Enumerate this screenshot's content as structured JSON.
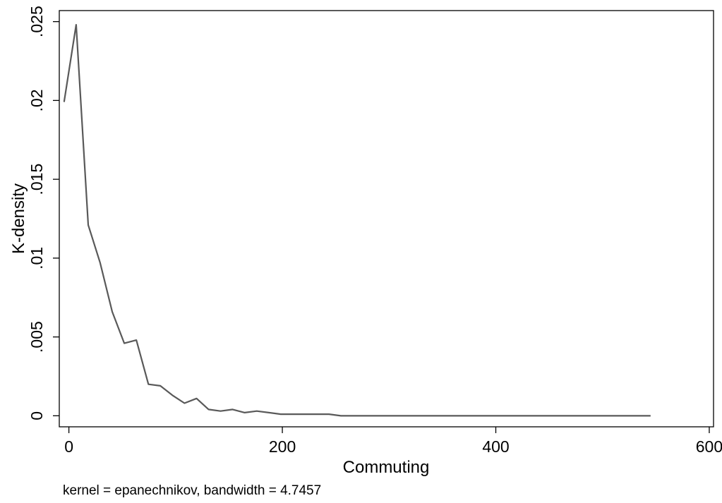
{
  "chart_data": {
    "type": "line",
    "xlabel": "Commuting",
    "ylabel": "K-density",
    "note": "kernel = epanechnikov, bandwidth = 4.7457",
    "xlim": [
      -9,
      604
    ],
    "ylim": [
      -0.0007,
      0.0257
    ],
    "xticks": [
      0,
      200,
      400,
      600
    ],
    "xtick_labels": [
      "0",
      "200",
      "400",
      "600"
    ],
    "yticks": [
      0,
      0.005,
      0.01,
      0.015,
      0.02,
      0.025
    ],
    "ytick_labels": [
      "0",
      ".005",
      ".01",
      ".015",
      ".02",
      ".025"
    ],
    "grid": false,
    "series": [
      {
        "color": "#595959",
        "x": [
          -4.5,
          6.8,
          18.1,
          29.3,
          40.6,
          51.9,
          63.2,
          74.5,
          85.7,
          97.0,
          108.3,
          119.6,
          130.9,
          142.1,
          153.4,
          164.7,
          176.0,
          187.3,
          198.5,
          209.8,
          221.1,
          232.4,
          243.7,
          254.9,
          266.2,
          277.5,
          288.8,
          300.1,
          311.3,
          322.6,
          333.9,
          345.2,
          356.5,
          367.7,
          379.0,
          390.3,
          401.6,
          412.9,
          424.1,
          435.4,
          446.7,
          458.0,
          469.3,
          480.5,
          491.8,
          503.1,
          514.4,
          525.7,
          536.9,
          545.0
        ],
        "y": [
          0.0199,
          0.0248,
          0.0121,
          0.0097,
          0.0066,
          0.0046,
          0.0048,
          0.002,
          0.0019,
          0.0013,
          0.0008,
          0.0011,
          0.0004,
          0.0003,
          0.0004,
          0.0002,
          0.0003,
          0.0002,
          0.0001,
          0.0001,
          0.0001,
          0.0001,
          0.0001,
          0.0,
          0.0,
          0.0,
          0.0,
          0.0,
          0.0,
          0.0,
          0.0,
          0.0,
          0.0,
          0.0,
          0.0,
          0.0,
          0.0,
          0.0,
          0.0,
          0.0,
          0.0,
          0.0,
          0.0,
          0.0,
          0.0,
          0.0,
          0.0,
          0.0,
          0.0,
          0.0
        ]
      }
    ]
  }
}
